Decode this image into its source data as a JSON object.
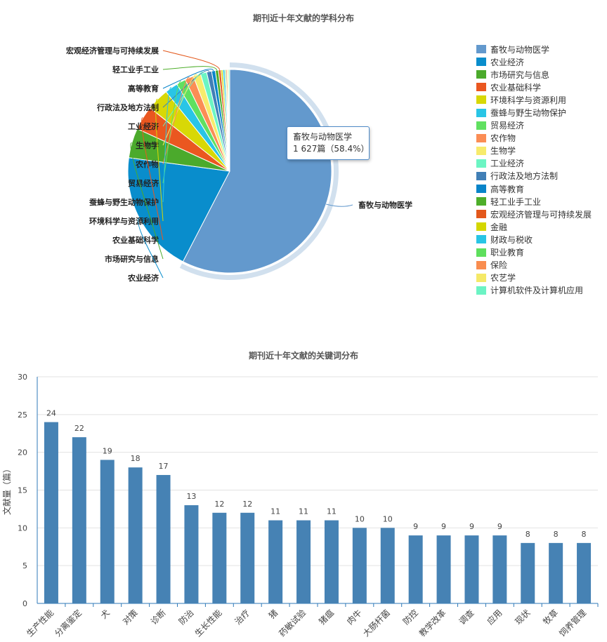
{
  "chart_data": [
    {
      "type": "pie",
      "title": "期刊近十年文献的学科分布",
      "categories": [
        "畜牧与动物医学",
        "农业经济",
        "市场研究与信息",
        "农业基础科学",
        "环境科学与资源利用",
        "蚕蜂与野生动物保护",
        "贸易经济",
        "农作物",
        "生物学",
        "工业经济",
        "行政法及地方法制",
        "高等教育",
        "轻工业手工业",
        "宏观经济管理与可持续发展",
        "金融",
        "财政与税收",
        "职业教育",
        "保险",
        "农艺学",
        "计算机软件及计算机应用"
      ],
      "values": [
        58.4,
        19.8,
        4.8,
        3.9,
        3.6,
        2.1,
        1.5,
        1.4,
        1.2,
        1.0,
        0.8,
        0.6,
        0.5,
        0.4,
        0.3,
        0.3,
        0.2,
        0.2,
        0.2,
        0.2
      ],
      "colors": [
        "#6399cd",
        "#098dcc",
        "#4baa2c",
        "#ea5720",
        "#d8d806",
        "#29c5e6",
        "#60e060",
        "#fb8d55",
        "#f7eb6c",
        "#6cf5c3",
        "#417fb6",
        "#0884c9",
        "#4eae2a",
        "#e3581c",
        "#d4d700",
        "#28c5e5",
        "#5edf5d",
        "#f98d4f",
        "#f5e967",
        "#6cf3c4"
      ],
      "labeled": [
        "畜牧与动物医学",
        "农业经济",
        "市场研究与信息",
        "农业基础科学",
        "环境科学与资源利用",
        "蚕蜂与野生动物保护",
        "贸易经济",
        "农作物",
        "生物学",
        "工业经济",
        "行政法及地方法制",
        "高等教育",
        "轻工业手工业",
        "宏观经济管理与可持续发展"
      ],
      "legend_placement": "right",
      "tooltip": {
        "category": "畜牧与动物医学",
        "value_text": "1 627篇（58.4%）"
      }
    },
    {
      "type": "bar",
      "title": "期刊近十年文献的关键词分布",
      "categories": [
        "生产性能",
        "分离鉴定",
        "犬",
        "对策",
        "诊断",
        "防治",
        "生长性能",
        "治疗",
        "猪",
        "药敏试验",
        "猪瘟",
        "肉牛",
        "大肠杆菌",
        "防控",
        "教学改革",
        "调查",
        "应用",
        "现状",
        "牧草",
        "饲养管理"
      ],
      "values": [
        24,
        22,
        19,
        18,
        17,
        13,
        12,
        12,
        11,
        11,
        11,
        10,
        10,
        9,
        9,
        9,
        9,
        8,
        8,
        8
      ],
      "ylabel": "文献量（篇）",
      "ylim": [
        0,
        30
      ],
      "yticks": [
        0,
        5,
        10,
        15,
        20,
        25,
        30
      ],
      "grid": true,
      "bar_color": "#4682b4"
    }
  ]
}
